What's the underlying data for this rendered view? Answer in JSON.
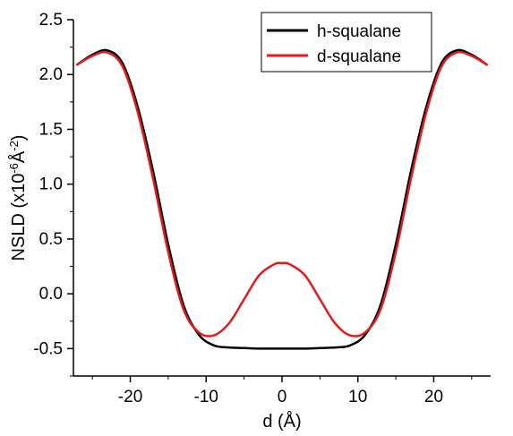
{
  "chart_data": {
    "type": "line",
    "xlabel": "d (Å)",
    "ylabel_main": "NSLD (x10",
    "ylabel_exp1": "-6",
    "ylabel_mid": "Å",
    "ylabel_exp2": "-2",
    "ylabel_end": ")",
    "xlim": [
      -27.5,
      27.5
    ],
    "ylim": [
      -0.75,
      2.5
    ],
    "x_ticks": [
      -20,
      -10,
      0,
      10,
      20
    ],
    "x_tick_labels": [
      "-20",
      "-10",
      "0",
      "10",
      "20"
    ],
    "y_ticks": [
      -0.5,
      0.0,
      0.5,
      1.0,
      1.5,
      2.0,
      2.5
    ],
    "y_tick_labels": [
      "-0.5",
      "0.0",
      "0.5",
      "1.0",
      "1.5",
      "2.0",
      "2.5"
    ],
    "grid": false,
    "legend_position": "top-right",
    "series": [
      {
        "name": "h-squalane",
        "color": "#000000",
        "x": [
          -27,
          -25,
          -23,
          -21,
          -19,
          -17,
          -15,
          -13,
          -11,
          -9,
          -7,
          -5,
          -3,
          -1,
          0,
          1,
          3,
          5,
          7,
          9,
          11,
          13,
          15,
          17,
          19,
          21,
          23,
          25,
          27
        ],
        "y": [
          2.09,
          2.18,
          2.22,
          2.1,
          1.7,
          1.12,
          0.45,
          -0.1,
          -0.37,
          -0.47,
          -0.49,
          -0.495,
          -0.5,
          -0.5,
          -0.5,
          -0.5,
          -0.5,
          -0.495,
          -0.49,
          -0.47,
          -0.37,
          -0.1,
          0.45,
          1.12,
          1.7,
          2.1,
          2.22,
          2.18,
          2.09
        ]
      },
      {
        "name": "d-squalane",
        "color": "#e41a1c",
        "x": [
          -27,
          -25,
          -23,
          -21,
          -19,
          -17,
          -15,
          -13,
          -11,
          -9,
          -7,
          -5,
          -3,
          -1,
          0,
          1,
          3,
          5,
          7,
          9,
          11,
          13,
          15,
          17,
          19,
          21,
          23,
          25,
          27
        ],
        "y": [
          2.09,
          2.17,
          2.2,
          2.07,
          1.65,
          1.05,
          0.38,
          -0.14,
          -0.35,
          -0.38,
          -0.27,
          -0.05,
          0.17,
          0.27,
          0.28,
          0.27,
          0.17,
          -0.05,
          -0.27,
          -0.38,
          -0.35,
          -0.14,
          0.38,
          1.05,
          1.65,
          2.07,
          2.2,
          2.17,
          2.09
        ]
      }
    ]
  }
}
